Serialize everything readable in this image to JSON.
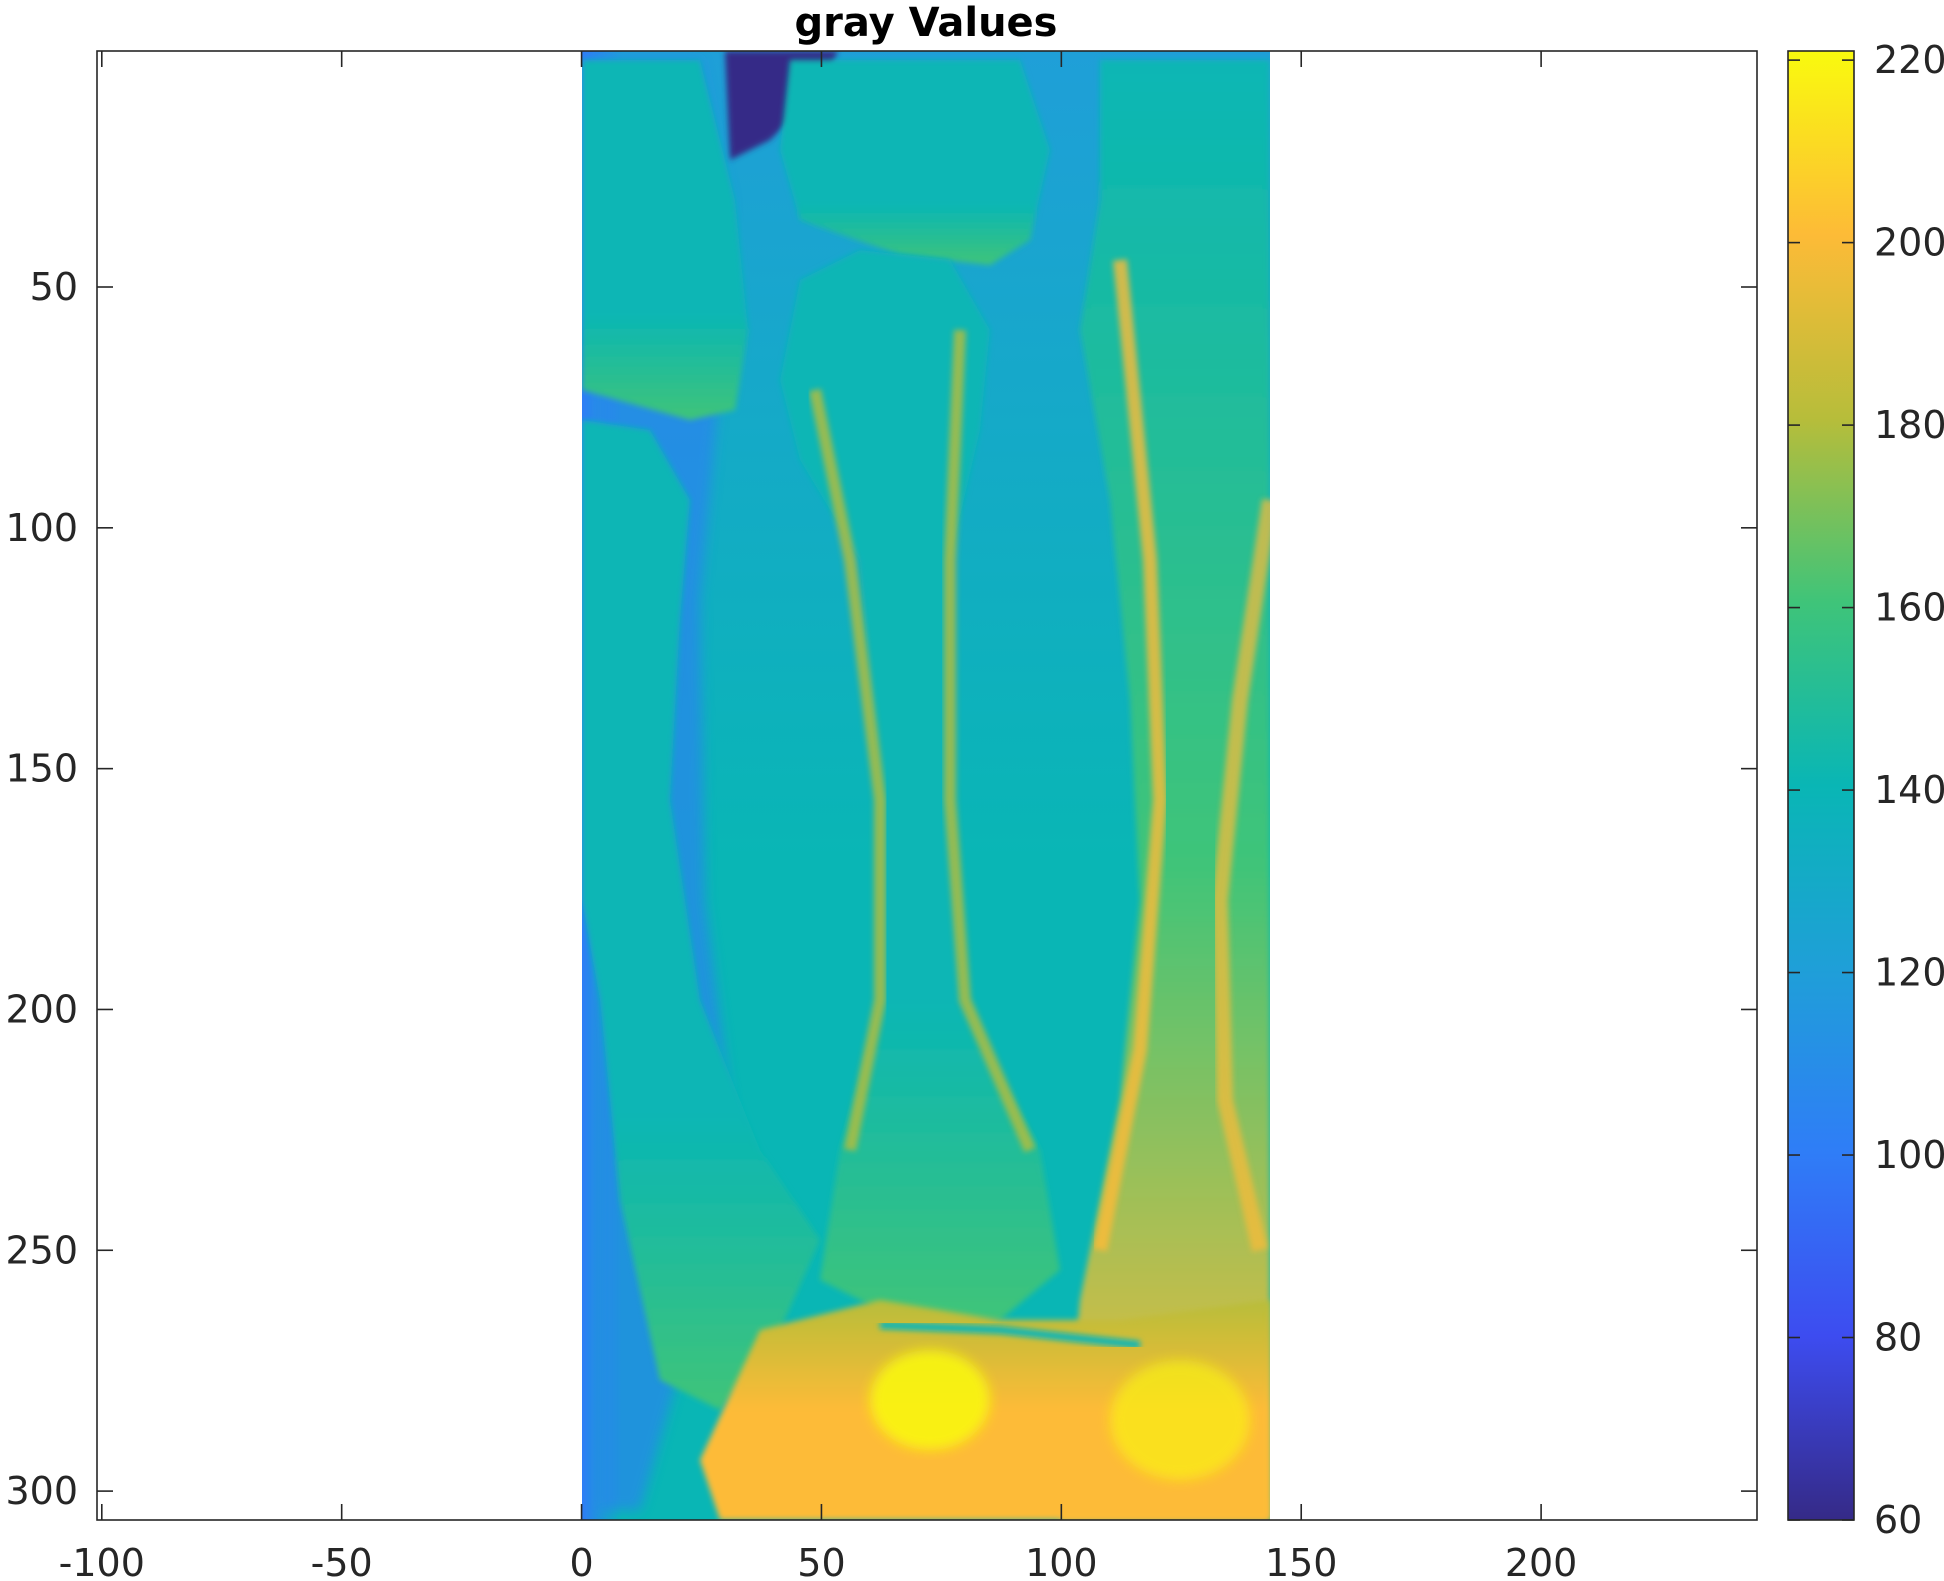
{
  "chart_data": {
    "type": "heatmap",
    "title": "gray Values",
    "xlabel": "",
    "ylabel": "",
    "xlim": [
      -101,
      245
    ],
    "ylim": [
      306,
      1
    ],
    "y_direction": "reversed",
    "x_ticks": [
      "-100",
      "-50",
      "0",
      "50",
      "100",
      "150",
      "200"
    ],
    "x_tick_values": [
      -100,
      -50,
      0,
      50,
      100,
      150,
      200
    ],
    "y_ticks": [
      "50",
      "100",
      "150",
      "200",
      "250",
      "300"
    ],
    "y_tick_values": [
      50,
      100,
      150,
      200,
      250,
      300
    ],
    "image_extent": {
      "x": [
        0,
        143
      ],
      "y": [
        1,
        306
      ]
    },
    "grid": false,
    "colormap": "parula",
    "colorbar": {
      "location": "right",
      "ticks": [
        "60",
        "80",
        "100",
        "120",
        "140",
        "160",
        "180",
        "200",
        "220"
      ],
      "tick_values": [
        60,
        80,
        100,
        120,
        140,
        160,
        180,
        200,
        220
      ],
      "range": [
        60,
        221
      ]
    },
    "colors": {
      "c60": "#352a87",
      "c80": "#3d4cf0",
      "c100": "#2f7df7",
      "c120": "#1f9fd8",
      "c140": "#09b6b5",
      "c160": "#3fc479",
      "c180": "#b7bd3a",
      "c200": "#fdbb37",
      "c220": "#f9fa0e"
    }
  }
}
